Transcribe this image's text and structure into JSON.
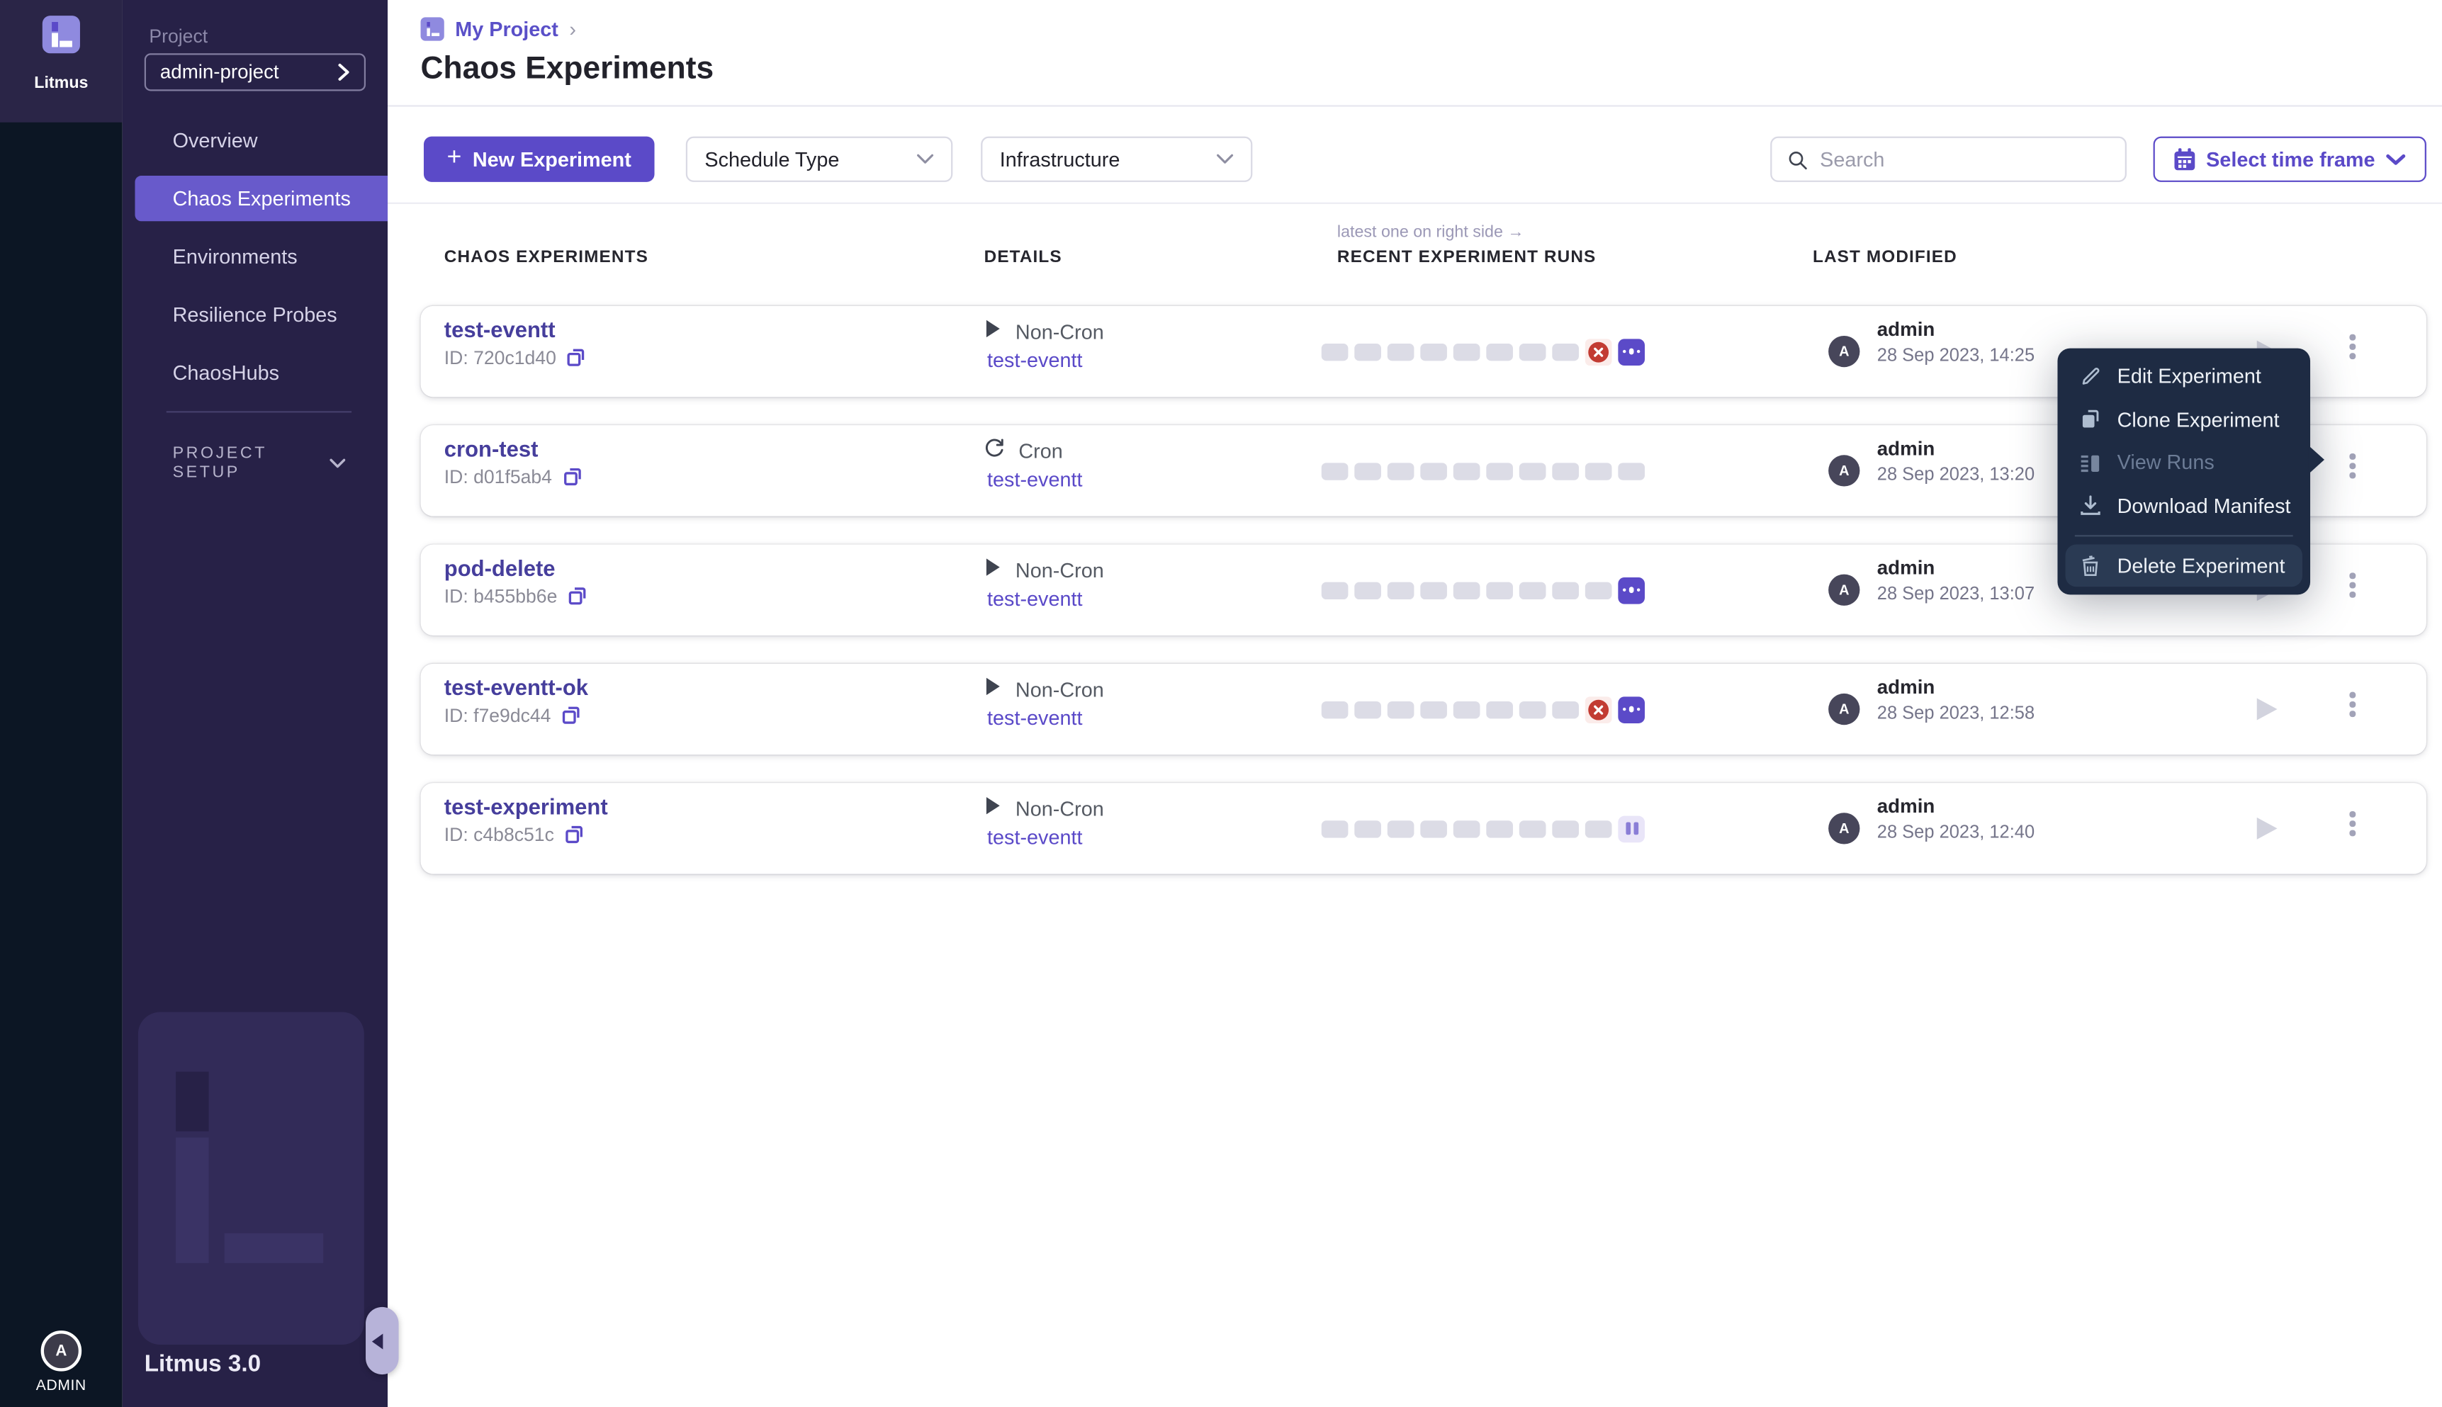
{
  "sidebar": {
    "brand": "Litmus",
    "project_label": "Project",
    "project_value": "admin-project",
    "items": [
      {
        "label": "Overview",
        "active": false
      },
      {
        "label": "Chaos Experiments",
        "active": true
      },
      {
        "label": "Environments",
        "active": false
      },
      {
        "label": "Resilience Probes",
        "active": false
      },
      {
        "label": "ChaosHubs",
        "active": false
      }
    ],
    "section_label": "PROJECT SETUP",
    "version": "Litmus 3.0",
    "user": {
      "initial": "A",
      "label": "ADMIN"
    }
  },
  "header": {
    "breadcrumb": "My Project",
    "breadcrumb_sep": "›",
    "title": "Chaos Experiments"
  },
  "toolbar": {
    "new_experiment_plus": "+",
    "new_experiment": "New Experiment",
    "schedule_type": "Schedule Type",
    "infrastructure": "Infrastructure",
    "search_placeholder": "Search",
    "time_frame": "Select time frame"
  },
  "table": {
    "runs_hint": "latest one on right side →",
    "headers": {
      "experiments": "CHAOS EXPERIMENTS",
      "details": "DETAILS",
      "runs": "RECENT EXPERIMENT RUNS",
      "modified": "LAST MODIFIED"
    }
  },
  "rows": [
    {
      "name": "test-eventt",
      "id": "ID: 720c1d40",
      "cron": false,
      "schedule": "Non-Cron",
      "link": "test-eventt",
      "runs": [
        "empty",
        "empty",
        "empty",
        "empty",
        "empty",
        "empty",
        "empty",
        "empty",
        "failed",
        "running"
      ],
      "user": "admin",
      "user_initial": "A",
      "date": "28 Sep 2023, 14:25"
    },
    {
      "name": "cron-test",
      "id": "ID: d01f5ab4",
      "cron": true,
      "schedule": "Cron",
      "link": "test-eventt",
      "runs": [
        "empty",
        "empty",
        "empty",
        "empty",
        "empty",
        "empty",
        "empty",
        "empty",
        "empty",
        "empty"
      ],
      "user": "admin",
      "user_initial": "A",
      "date": "28 Sep 2023, 13:20"
    },
    {
      "name": "pod-delete",
      "id": "ID: b455bb6e",
      "cron": false,
      "schedule": "Non-Cron",
      "link": "test-eventt",
      "runs": [
        "empty",
        "empty",
        "empty",
        "empty",
        "empty",
        "empty",
        "empty",
        "empty",
        "empty",
        "running"
      ],
      "user": "admin",
      "user_initial": "A",
      "date": "28 Sep 2023, 13:07"
    },
    {
      "name": "test-eventt-ok",
      "id": "ID: f7e9dc44",
      "cron": false,
      "schedule": "Non-Cron",
      "link": "test-eventt",
      "runs": [
        "empty",
        "empty",
        "empty",
        "empty",
        "empty",
        "empty",
        "empty",
        "empty",
        "failed",
        "running"
      ],
      "user": "admin",
      "user_initial": "A",
      "date": "28 Sep 2023, 12:58"
    },
    {
      "name": "test-experiment",
      "id": "ID: c4b8c51c",
      "cron": false,
      "schedule": "Non-Cron",
      "link": "test-eventt",
      "runs": [
        "empty",
        "empty",
        "empty",
        "empty",
        "empty",
        "empty",
        "empty",
        "empty",
        "empty",
        "paused"
      ],
      "user": "admin",
      "user_initial": "A",
      "date": "28 Sep 2023, 12:40"
    }
  ],
  "context_menu": {
    "items": [
      {
        "label": "Edit Experiment",
        "icon": "pencil-icon",
        "disabled": false,
        "highlighted": false
      },
      {
        "label": "Clone Experiment",
        "icon": "clone-icon",
        "disabled": false,
        "highlighted": false
      },
      {
        "label": "View Runs",
        "icon": "runs-icon",
        "disabled": true,
        "highlighted": false
      },
      {
        "label": "Download Manifest",
        "icon": "download-icon",
        "disabled": false,
        "highlighted": false
      },
      {
        "label": "Delete Experiment",
        "icon": "trash-icon",
        "disabled": false,
        "highlighted": true
      }
    ]
  },
  "colors": {
    "accent": "#5B4AC8",
    "nav_highlight": "#685ACB",
    "sidebar_bg": "#272147",
    "rail_bg": "#0C1624",
    "menu_bg": "#1E2B43",
    "failed_red": "#C23B32",
    "paused_purple": "#8A7ED6",
    "empty_run_gray": "#DCDCE6",
    "name_indigo": "#463E9C"
  }
}
